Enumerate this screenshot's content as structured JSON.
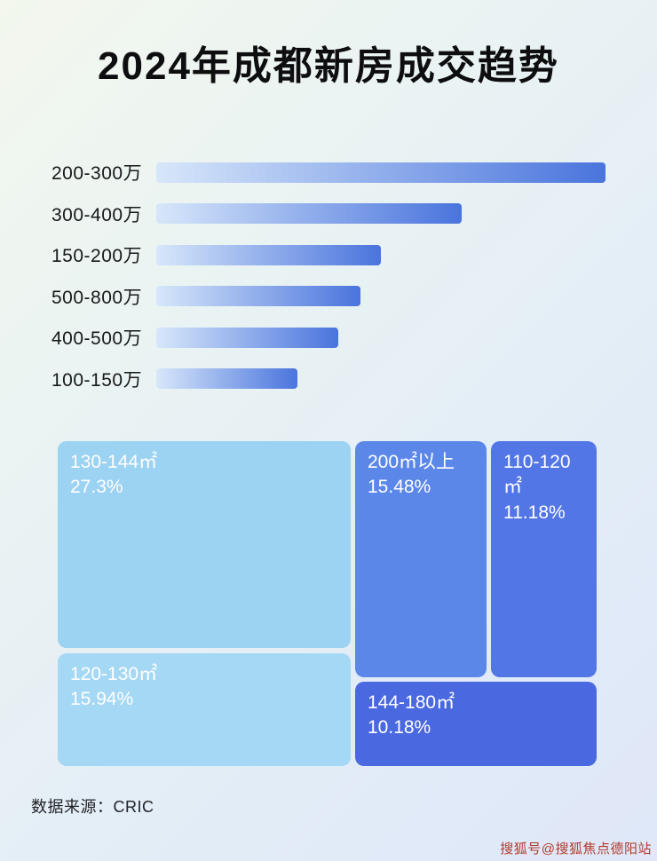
{
  "page": {
    "title": "2024年成都新房成交趋势",
    "source": "数据来源：CRIC",
    "watermark": "搜狐号@搜狐焦点德阳站"
  },
  "chart_data": [
    {
      "type": "bar",
      "orientation": "horizontal",
      "title": "2024年成都新房成交趋势",
      "categories": [
        "200-300万",
        "300-400万",
        "150-200万",
        "500-800万",
        "400-500万",
        "100-150万"
      ],
      "values": [
        100,
        68,
        50,
        45.5,
        40.5,
        31.5
      ],
      "value_note": "relative bar length (% of longest bar); no numeric labels shown in image",
      "bar_gradient": [
        "#d7e7fa",
        "#4a74dd"
      ],
      "xlabel": "",
      "ylabel": "",
      "grid": false,
      "legend": false
    },
    {
      "type": "treemap",
      "title": "",
      "items": [
        {
          "label": "130-144㎡",
          "value": 27.3,
          "display": "27.3%",
          "color": "#9cd2f2"
        },
        {
          "label": "120-130㎡",
          "value": 15.94,
          "display": "15.94%",
          "color": "#a5d8f4"
        },
        {
          "label": "200㎡以上",
          "value": 15.48,
          "display": "15.48%",
          "color": "#5b87e9"
        },
        {
          "label": "110-120㎡",
          "value": 11.18,
          "display": "11.18%",
          "color": "#5376e7"
        },
        {
          "label": "144-180㎡",
          "value": 10.18,
          "display": "10.18%",
          "color": "#4a68df"
        }
      ]
    }
  ]
}
